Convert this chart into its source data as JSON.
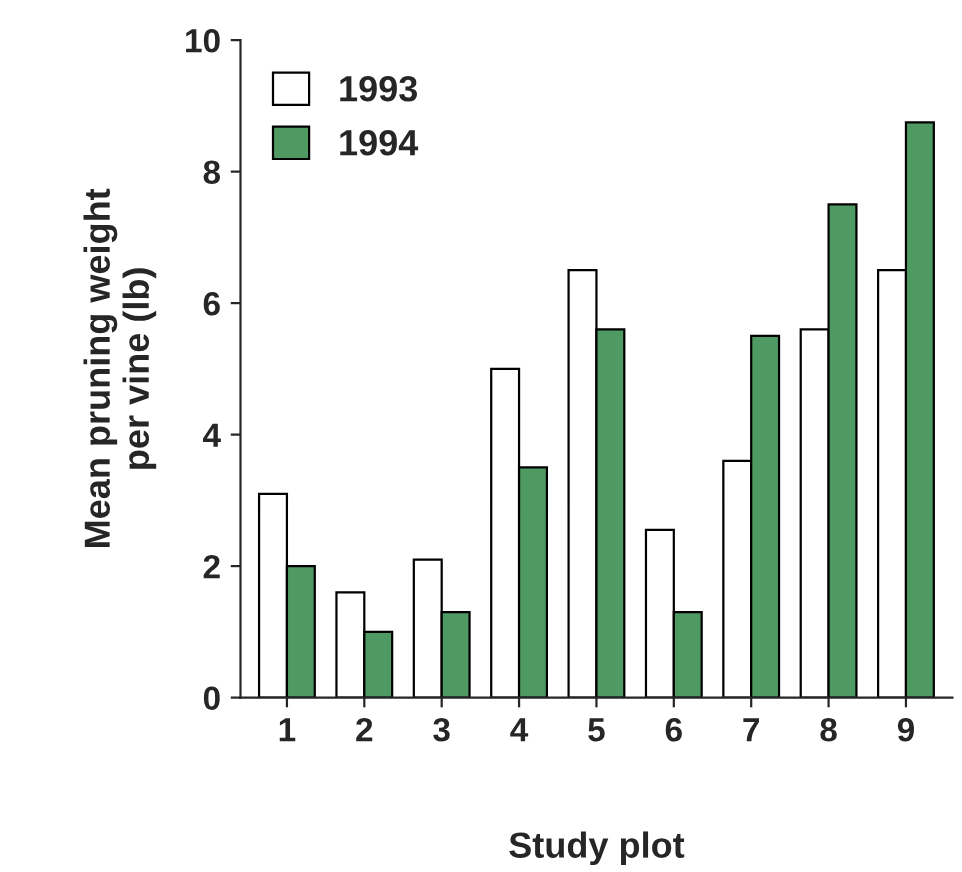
{
  "chart_data": {
    "type": "bar",
    "xlabel": "Study plot",
    "ylabel": "Mean pruning weight\nper vine (lb)",
    "categories": [
      "1",
      "2",
      "3",
      "4",
      "5",
      "6",
      "7",
      "8",
      "9"
    ],
    "series": [
      {
        "name": "1993",
        "color": "#ffffff",
        "values": [
          3.1,
          1.6,
          2.1,
          5.0,
          6.5,
          2.55,
          3.6,
          5.6,
          6.5
        ]
      },
      {
        "name": "1994",
        "color": "#4f9a62",
        "values": [
          2.0,
          1.0,
          1.3,
          3.5,
          5.6,
          1.3,
          5.5,
          7.5,
          8.75
        ]
      }
    ],
    "ylim": [
      0,
      10
    ],
    "yticks": [
      0,
      2,
      4,
      6,
      8,
      10
    ],
    "grid": false,
    "legend": "top left"
  }
}
